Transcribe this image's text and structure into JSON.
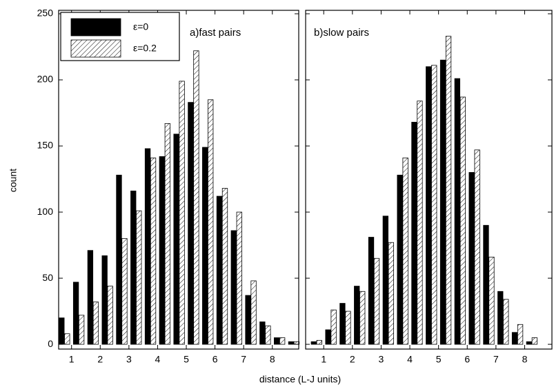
{
  "y_label": "count",
  "x_label": "distance (L-J units)",
  "chart_data": [
    {
      "type": "bar",
      "title": "a)fast pairs",
      "legend": "upper left",
      "ytick_labels": true,
      "x": [
        0.75,
        1.25,
        1.75,
        2.25,
        2.75,
        3.25,
        3.75,
        4.25,
        4.75,
        5.25,
        5.75,
        6.25,
        6.75,
        7.25,
        7.75,
        8.25,
        8.75
      ],
      "series": [
        {
          "name": "ε=0",
          "color": "#000000",
          "pattern": "solid",
          "values": [
            20,
            47,
            71,
            67,
            128,
            116,
            148,
            142,
            159,
            183,
            149,
            112,
            86,
            37,
            17,
            5,
            2
          ]
        },
        {
          "name": "ε=0.2",
          "color": "#000000",
          "pattern": "hatch",
          "values": [
            8,
            22,
            32,
            44,
            80,
            101,
            141,
            167,
            199,
            222,
            185,
            118,
            100,
            48,
            14,
            5,
            2
          ]
        }
      ],
      "xlim": [
        0.55,
        8.92
      ],
      "xticks": [
        1,
        2,
        3,
        4,
        5,
        6,
        7,
        8
      ],
      "ylim": [
        -3.6,
        252.6
      ],
      "yticks": [
        0,
        50,
        100,
        150,
        200,
        250
      ]
    },
    {
      "type": "bar",
      "title": "b)slow pairs",
      "ytick_labels": false,
      "x": [
        0.75,
        1.25,
        1.75,
        2.25,
        2.75,
        3.25,
        3.75,
        4.25,
        4.75,
        5.25,
        5.75,
        6.25,
        6.75,
        7.25,
        7.75,
        8.25
      ],
      "series": [
        {
          "name": "ε=0",
          "color": "#000000",
          "pattern": "solid",
          "values": [
            2,
            11,
            31,
            44,
            81,
            97,
            128,
            168,
            210,
            215,
            201,
            130,
            90,
            40,
            9,
            2
          ]
        },
        {
          "name": "ε=0.2",
          "color": "#000000",
          "pattern": "hatch",
          "values": [
            3,
            26,
            25,
            40,
            65,
            77,
            141,
            184,
            211,
            233,
            187,
            147,
            66,
            34,
            15,
            5
          ]
        }
      ],
      "xlim": [
        0.37,
        8.95
      ],
      "xticks": [
        1,
        2,
        3,
        4,
        5,
        6,
        7,
        8
      ],
      "ylim": [
        -3.6,
        252.6
      ],
      "yticks": [
        0,
        50,
        100,
        150,
        200,
        250
      ]
    }
  ]
}
